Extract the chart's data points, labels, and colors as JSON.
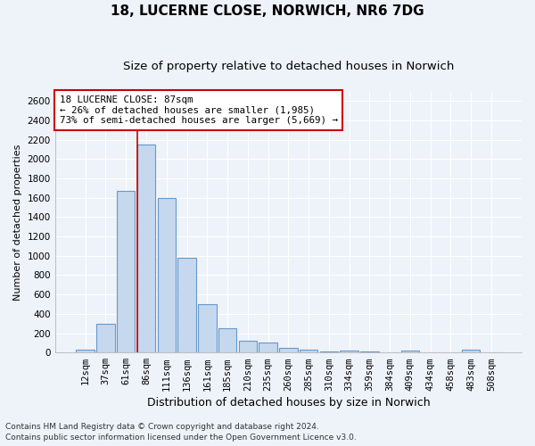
{
  "title_line1": "18, LUCERNE CLOSE, NORWICH, NR6 7DG",
  "title_line2": "Size of property relative to detached houses in Norwich",
  "xlabel": "Distribution of detached houses by size in Norwich",
  "ylabel": "Number of detached properties",
  "categories": [
    "12sqm",
    "37sqm",
    "61sqm",
    "86sqm",
    "111sqm",
    "136sqm",
    "161sqm",
    "185sqm",
    "210sqm",
    "235sqm",
    "260sqm",
    "285sqm",
    "310sqm",
    "334sqm",
    "359sqm",
    "384sqm",
    "409sqm",
    "434sqm",
    "458sqm",
    "483sqm",
    "508sqm"
  ],
  "values": [
    25,
    300,
    1675,
    2150,
    1600,
    975,
    500,
    250,
    120,
    100,
    50,
    25,
    10,
    20,
    10,
    5,
    20,
    5,
    5,
    25,
    5
  ],
  "bar_color": "#c5d8ee",
  "bar_edge_color": "#6699cc",
  "highlight_bar_index": 3,
  "highlight_color": "#cc0000",
  "annotation_text": "18 LUCERNE CLOSE: 87sqm\n← 26% of detached houses are smaller (1,985)\n73% of semi-detached houses are larger (5,669) →",
  "annotation_box_color": "#ffffff",
  "annotation_box_edge_color": "#cc0000",
  "ylim": [
    0,
    2700
  ],
  "yticks": [
    0,
    200,
    400,
    600,
    800,
    1000,
    1200,
    1400,
    1600,
    1800,
    2000,
    2200,
    2400,
    2600
  ],
  "footer_line1": "Contains HM Land Registry data © Crown copyright and database right 2024.",
  "footer_line2": "Contains public sector information licensed under the Open Government Licence v3.0.",
  "background_color": "#eef2f9",
  "grid_color": "#ffffff",
  "title1_fontsize": 11,
  "title2_fontsize": 9.5,
  "xlabel_fontsize": 9,
  "ylabel_fontsize": 8,
  "tick_fontsize": 7.5,
  "footer_fontsize": 6.5
}
